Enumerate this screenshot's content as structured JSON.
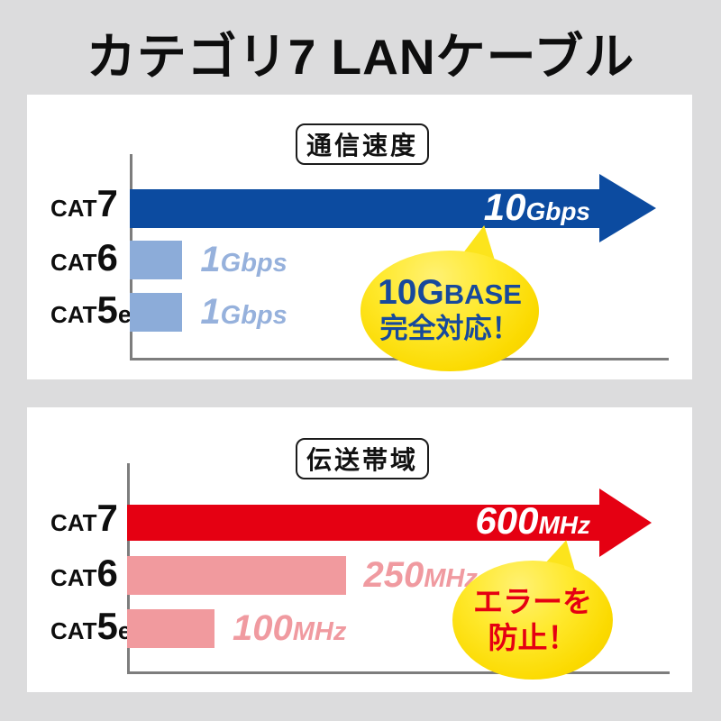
{
  "page": {
    "title": "カテゴリ7 LANケーブル",
    "background_color": "#dcdcdd",
    "card_color": "#ffffff"
  },
  "charts": [
    {
      "title": "通信速度",
      "accent_color": "#0c4ba0",
      "bar_color": "#8cacd9",
      "rows": [
        {
          "label_prefix": "CAT",
          "label_num": "7",
          "label_suffix": "",
          "value_num": "10",
          "value_unit": "Gbps"
        },
        {
          "label_prefix": "CAT",
          "label_num": "6",
          "label_suffix": "",
          "value_num": "1",
          "value_unit": "Gbps"
        },
        {
          "label_prefix": "CAT",
          "label_num": "5",
          "label_suffix": "e",
          "value_num": "1",
          "value_unit": "Gbps"
        }
      ],
      "bubble": {
        "line1_big": "10G",
        "line1_small": "BASE",
        "line2": "完全対応！",
        "text_color": "#17499c"
      }
    },
    {
      "title": "伝送帯域",
      "accent_color": "#e50012",
      "bar_color": "#f19a9e",
      "rows": [
        {
          "label_prefix": "CAT",
          "label_num": "7",
          "label_suffix": "",
          "value_num": "600",
          "value_unit": "MHz"
        },
        {
          "label_prefix": "CAT",
          "label_num": "6",
          "label_suffix": "",
          "value_num": "250",
          "value_unit": "MHz"
        },
        {
          "label_prefix": "CAT",
          "label_num": "5",
          "label_suffix": "e",
          "value_num": "100",
          "value_unit": "MHz"
        }
      ],
      "bubble": {
        "line1_big": "",
        "line1_small": "エラーを",
        "line2": "防止！",
        "text_color": "#e50012"
      }
    }
  ],
  "chart_data": [
    {
      "type": "bar",
      "orientation": "horizontal",
      "title": "通信速度",
      "categories": [
        "CAT7",
        "CAT6",
        "CAT5e"
      ],
      "values": [
        10,
        1,
        1
      ],
      "unit": "Gbps",
      "value_labels": [
        "10Gbps",
        "1Gbps",
        "1Gbps"
      ],
      "xlim": [
        0,
        10.5
      ],
      "grid": false,
      "note": "CAT7 drawn as dark-blue arrow, others as light-blue bars",
      "annotation": "10GBASE完全対応！"
    },
    {
      "type": "bar",
      "orientation": "horizontal",
      "title": "伝送帯域",
      "categories": [
        "CAT7",
        "CAT6",
        "CAT5e"
      ],
      "values": [
        600,
        250,
        100
      ],
      "unit": "MHz",
      "value_labels": [
        "600MHz",
        "250MHz",
        "100MHz"
      ],
      "xlim": [
        0,
        620
      ],
      "grid": false,
      "note": "CAT7 drawn as red arrow, others as pink bars",
      "annotation": "エラーを防止！"
    }
  ]
}
